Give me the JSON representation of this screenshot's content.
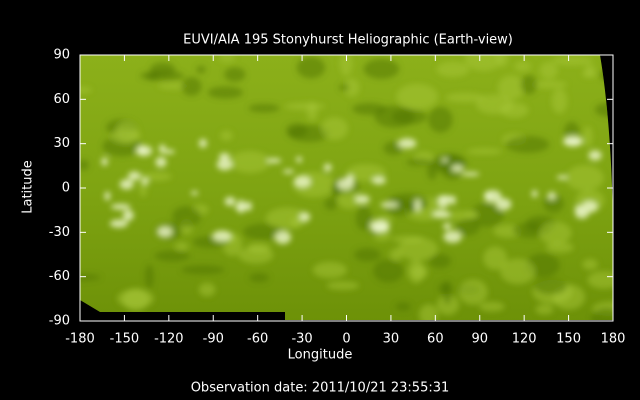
{
  "chart_data": {
    "type": "image",
    "title": "EUVI/AIA 195 Stonyhurst Heliographic (Earth-view)",
    "xlabel": "Longitude",
    "ylabel": "Latitude",
    "xlim": [
      -180,
      180
    ],
    "ylim": [
      -90,
      90
    ],
    "xticks": [
      -180,
      -150,
      -120,
      -90,
      -60,
      -30,
      0,
      30,
      60,
      90,
      120,
      150,
      180
    ],
    "yticks": [
      -90,
      -60,
      -30,
      0,
      30,
      60,
      90
    ],
    "footer": "Observation date: 2011/10/21 23:55:31"
  }
}
